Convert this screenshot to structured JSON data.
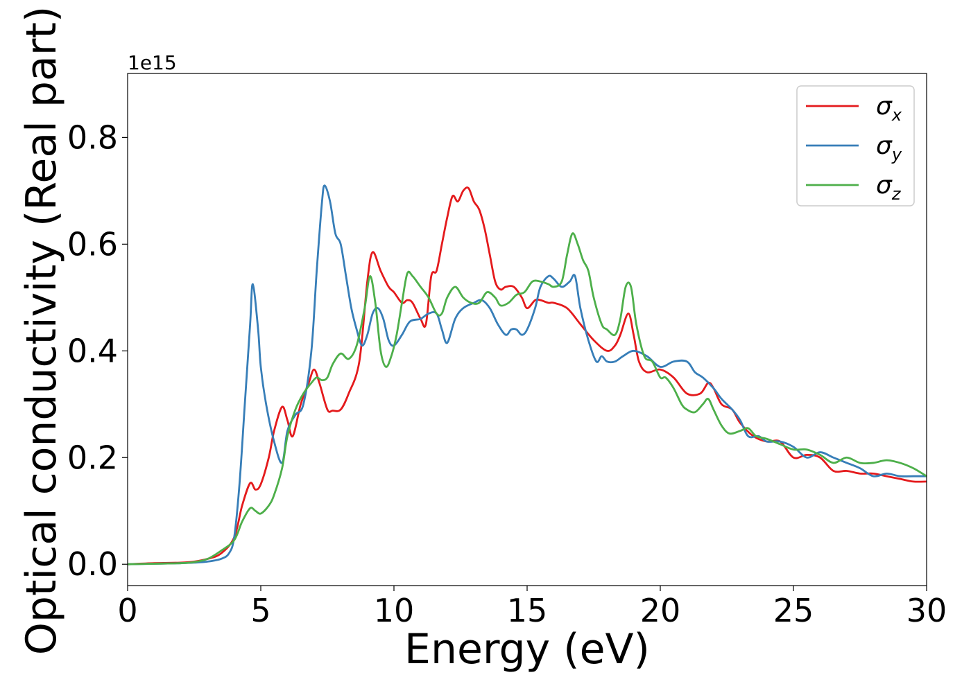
{
  "chart_data": {
    "type": "line",
    "xlabel": "Energy (eV)",
    "ylabel": "Optical conductivity (Real part)",
    "y_offset_label": "1e15",
    "xlim": [
      0,
      30
    ],
    "ylim": [
      -0.04,
      0.92
    ],
    "xticks": [
      0,
      5,
      10,
      15,
      20,
      25,
      30
    ],
    "yticks": [
      0.0,
      0.2,
      0.4,
      0.6,
      0.8
    ],
    "xtick_labels": [
      "0",
      "5",
      "10",
      "15",
      "20",
      "25",
      "30"
    ],
    "ytick_labels": [
      "0.0",
      "0.2",
      "0.4",
      "0.6",
      "0.8"
    ],
    "grid": false,
    "legend_position": "top-right",
    "series": [
      {
        "name": "σx",
        "label_base": "σ",
        "label_sub": "x",
        "color": "#e41a1c",
        "x": [
          0,
          1,
          2,
          2.5,
          3,
          3.5,
          4,
          4.3,
          4.6,
          4.8,
          5,
          5.3,
          5.5,
          5.8,
          6,
          6.2,
          6.5,
          6.8,
          7,
          7.2,
          7.5,
          7.7,
          8,
          8.3,
          8.7,
          9,
          9.2,
          9.5,
          9.8,
          10,
          10.3,
          10.5,
          10.7,
          11,
          11.2,
          11.4,
          11.6,
          11.8,
          12,
          12.2,
          12.4,
          12.6,
          12.8,
          13,
          13.2,
          13.4,
          13.6,
          13.8,
          14,
          14.2,
          14.5,
          14.8,
          15,
          15.3,
          15.5,
          15.8,
          16,
          16.5,
          17,
          17.5,
          18,
          18.3,
          18.5,
          18.8,
          19,
          19.2,
          19.5,
          20,
          20.5,
          21,
          21.5,
          21.8,
          22,
          22.3,
          22.7,
          23,
          23.5,
          24,
          24.5,
          25,
          25.5,
          26,
          26.5,
          27,
          27.5,
          28,
          28.5,
          29,
          29.5,
          30
        ],
        "values": [
          0,
          0.002,
          0.003,
          0.005,
          0.01,
          0.02,
          0.05,
          0.11,
          0.152,
          0.14,
          0.15,
          0.2,
          0.25,
          0.295,
          0.27,
          0.24,
          0.3,
          0.34,
          0.365,
          0.34,
          0.29,
          0.288,
          0.29,
          0.32,
          0.38,
          0.53,
          0.585,
          0.55,
          0.52,
          0.51,
          0.49,
          0.495,
          0.49,
          0.46,
          0.45,
          0.54,
          0.55,
          0.6,
          0.65,
          0.69,
          0.68,
          0.7,
          0.705,
          0.68,
          0.665,
          0.63,
          0.58,
          0.53,
          0.515,
          0.52,
          0.52,
          0.5,
          0.48,
          0.495,
          0.495,
          0.49,
          0.49,
          0.48,
          0.45,
          0.42,
          0.4,
          0.41,
          0.43,
          0.47,
          0.43,
          0.38,
          0.36,
          0.365,
          0.35,
          0.32,
          0.32,
          0.34,
          0.33,
          0.3,
          0.29,
          0.265,
          0.24,
          0.23,
          0.23,
          0.2,
          0.205,
          0.2,
          0.175,
          0.175,
          0.17,
          0.17,
          0.165,
          0.16,
          0.155,
          0.155
        ]
      },
      {
        "name": "σy",
        "label_base": "σ",
        "label_sub": "y",
        "color": "#377eb8",
        "x": [
          0,
          1,
          2,
          2.5,
          3,
          3.5,
          3.8,
          4,
          4.2,
          4.4,
          4.6,
          4.7,
          4.9,
          5,
          5.2,
          5.5,
          5.8,
          6,
          6.3,
          6.6,
          6.9,
          7.1,
          7.3,
          7.4,
          7.6,
          7.8,
          8,
          8.2,
          8.4,
          8.6,
          8.8,
          9,
          9.2,
          9.4,
          9.6,
          9.8,
          10,
          10.3,
          10.6,
          11,
          11.3,
          11.6,
          11.8,
          12,
          12.3,
          12.6,
          13,
          13.3,
          13.6,
          13.9,
          14.2,
          14.4,
          14.6,
          14.8,
          15,
          15.3,
          15.5,
          15.8,
          16,
          16.3,
          16.6,
          16.8,
          17,
          17.3,
          17.6,
          17.8,
          18,
          18.3,
          18.6,
          19,
          19.5,
          20,
          20.5,
          21,
          21.3,
          21.6,
          22,
          22.3,
          22.7,
          23,
          23.3,
          23.7,
          24,
          24.5,
          25,
          25.5,
          26,
          26.5,
          27,
          27.5,
          28,
          28.5,
          29,
          29.5,
          30
        ],
        "values": [
          0,
          0.001,
          0.002,
          0.003,
          0.005,
          0.01,
          0.02,
          0.05,
          0.15,
          0.3,
          0.45,
          0.525,
          0.44,
          0.37,
          0.3,
          0.23,
          0.19,
          0.25,
          0.28,
          0.3,
          0.4,
          0.55,
          0.68,
          0.71,
          0.68,
          0.62,
          0.6,
          0.54,
          0.48,
          0.44,
          0.41,
          0.43,
          0.47,
          0.48,
          0.46,
          0.42,
          0.41,
          0.43,
          0.455,
          0.46,
          0.47,
          0.47,
          0.44,
          0.415,
          0.46,
          0.48,
          0.49,
          0.495,
          0.48,
          0.45,
          0.43,
          0.44,
          0.44,
          0.43,
          0.44,
          0.48,
          0.52,
          0.54,
          0.535,
          0.52,
          0.53,
          0.54,
          0.48,
          0.42,
          0.38,
          0.39,
          0.38,
          0.38,
          0.39,
          0.4,
          0.39,
          0.37,
          0.38,
          0.38,
          0.36,
          0.35,
          0.33,
          0.31,
          0.29,
          0.27,
          0.24,
          0.24,
          0.23,
          0.23,
          0.22,
          0.2,
          0.21,
          0.2,
          0.19,
          0.18,
          0.165,
          0.17,
          0.165,
          0.165,
          0.165
        ]
      },
      {
        "name": "σz",
        "label_base": "σ",
        "label_sub": "z",
        "color": "#4daf4a",
        "x": [
          0,
          1,
          2,
          2.5,
          3,
          3.5,
          4,
          4.3,
          4.6,
          4.8,
          5,
          5.3,
          5.5,
          5.8,
          6,
          6.3,
          6.6,
          6.9,
          7.1,
          7.3,
          7.5,
          7.7,
          8,
          8.3,
          8.6,
          8.9,
          9.1,
          9.3,
          9.5,
          9.7,
          9.9,
          10.1,
          10.3,
          10.5,
          10.7,
          11,
          11.3,
          11.6,
          11.8,
          12,
          12.3,
          12.6,
          12.9,
          13.2,
          13.5,
          13.8,
          14,
          14.3,
          14.6,
          14.9,
          15.2,
          15.5,
          15.8,
          16,
          16.3,
          16.5,
          16.7,
          16.9,
          17.1,
          17.3,
          17.5,
          17.8,
          18,
          18.3,
          18.5,
          18.7,
          18.9,
          19.1,
          19.4,
          19.7,
          20,
          20.2,
          20.5,
          20.8,
          21,
          21.3,
          21.6,
          21.8,
          22,
          22.3,
          22.6,
          23,
          23.3,
          23.6,
          24,
          24.5,
          25,
          25.5,
          26,
          26.5,
          27,
          27.5,
          28,
          28.5,
          29,
          29.5,
          30
        ],
        "values": [
          0,
          0.001,
          0.002,
          0.004,
          0.01,
          0.025,
          0.045,
          0.08,
          0.105,
          0.1,
          0.095,
          0.11,
          0.13,
          0.18,
          0.24,
          0.29,
          0.32,
          0.34,
          0.35,
          0.345,
          0.35,
          0.375,
          0.395,
          0.385,
          0.41,
          0.48,
          0.54,
          0.49,
          0.4,
          0.37,
          0.39,
          0.43,
          0.49,
          0.545,
          0.54,
          0.52,
          0.5,
          0.47,
          0.47,
          0.5,
          0.52,
          0.5,
          0.49,
          0.49,
          0.51,
          0.5,
          0.485,
          0.49,
          0.505,
          0.51,
          0.53,
          0.53,
          0.525,
          0.52,
          0.53,
          0.58,
          0.62,
          0.6,
          0.57,
          0.55,
          0.5,
          0.45,
          0.44,
          0.43,
          0.46,
          0.52,
          0.52,
          0.45,
          0.39,
          0.38,
          0.35,
          0.35,
          0.33,
          0.3,
          0.29,
          0.285,
          0.3,
          0.31,
          0.29,
          0.26,
          0.245,
          0.25,
          0.255,
          0.24,
          0.235,
          0.225,
          0.215,
          0.215,
          0.205,
          0.19,
          0.2,
          0.19,
          0.19,
          0.195,
          0.19,
          0.18,
          0.165
        ]
      }
    ]
  }
}
